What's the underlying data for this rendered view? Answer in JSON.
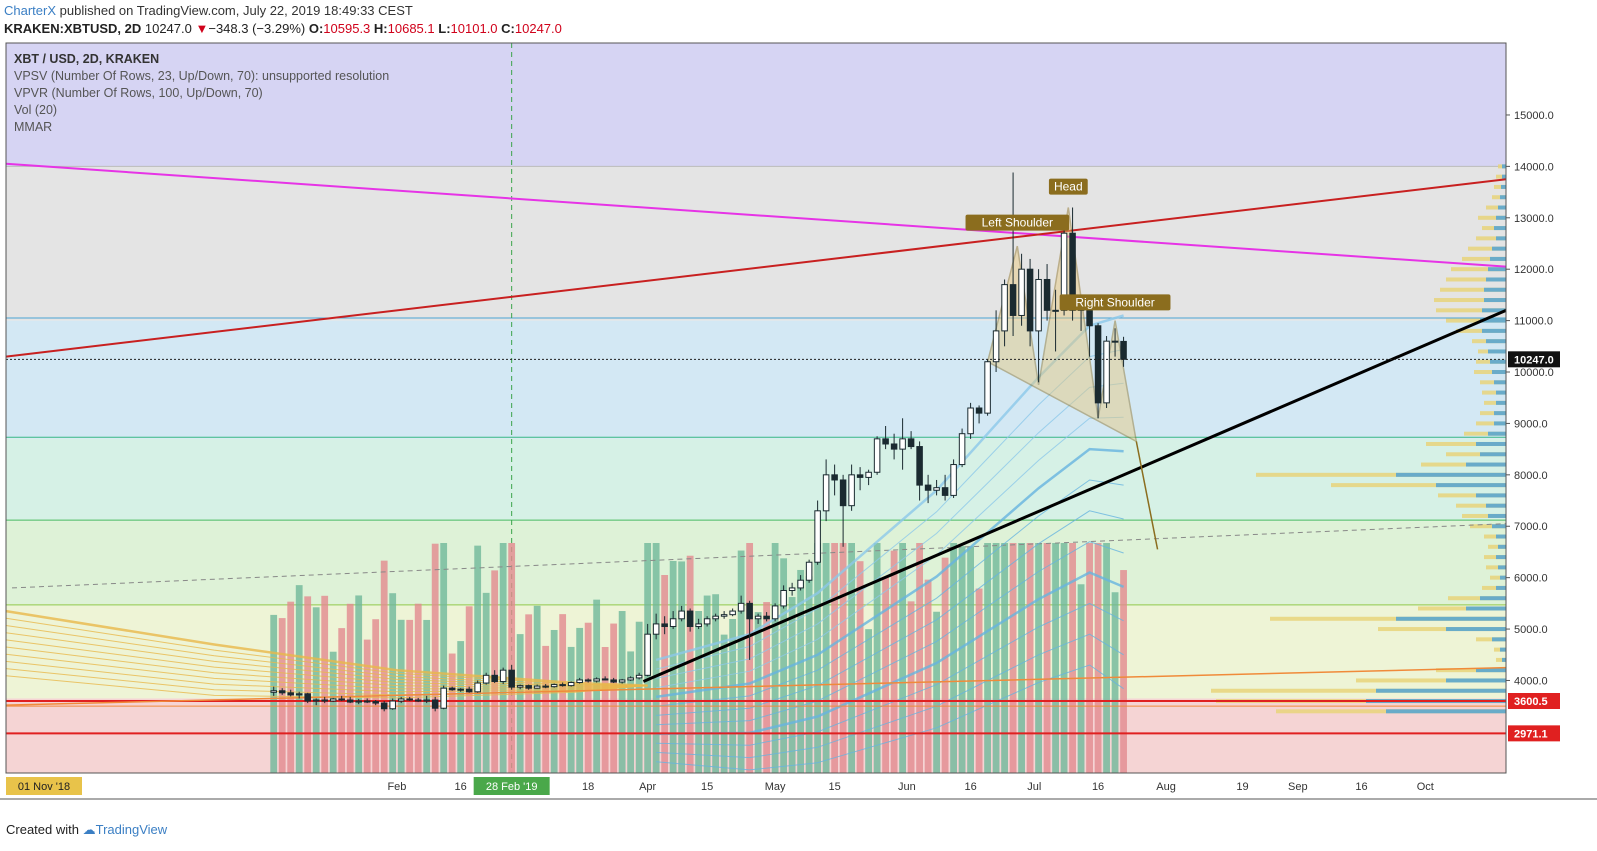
{
  "header": {
    "author": "CharterX",
    "published_text": "published on TradingView.com, July 22, 2019 18:49:33 CEST",
    "symbol": "KRAKEN:XBTUSD, 2D",
    "last": "10247.0",
    "change_arrow": "▼",
    "change": "−348.3 (−3.29%)",
    "open_label": "O:",
    "open": "10595.3",
    "high_label": "H:",
    "high": "10685.1",
    "low_label": "L:",
    "low": "10101.0",
    "close_label": "C:",
    "close": "10247.0"
  },
  "legend": {
    "title": "XBT / USD, 2D, KRAKEN",
    "vpsv": "VPSV (Number Of Rows, 23, Up/Down, 70): unsupported resolution",
    "vpvr": "VPVR (Number Of Rows, 100, Up/Down, 70)",
    "vol": "Vol (20)",
    "mmar": "MMAR"
  },
  "footer": {
    "created_with": "Created with",
    "tradingview": "TradingView"
  },
  "colors": {
    "up": "#ffffff",
    "down": "#1a2a30",
    "vol_up": "#6fb89a",
    "vol_down": "#e2898e",
    "pattern": "#8b6d1e",
    "support_red": "#e02020",
    "trend_black": "#000000",
    "magenta": "#e633e6",
    "darkred": "#c82020"
  },
  "chart_data": {
    "type": "candlestick",
    "ylim": [
      2200,
      16400
    ],
    "y_ticks": [
      4000,
      5000,
      6000,
      7000,
      8000,
      9000,
      10000,
      11000,
      12000,
      13000,
      14000,
      15000
    ],
    "y_tick_labels": [
      "4000.0",
      "5000.0",
      "6000.0",
      "7000.0",
      "8000.0",
      "9000.0",
      "10000.0",
      "11000.0",
      "12000.0",
      "13000.0",
      "14000.0",
      "15000.0"
    ],
    "x_tick_labels": [
      {
        "date": "2018-11-01",
        "label": "01 Nov '18",
        "badge": true
      },
      {
        "date": "2019-02-01",
        "label": "Feb"
      },
      {
        "date": "2019-02-16",
        "label": "16"
      },
      {
        "date": "2019-02-28",
        "label": "28 Feb '19",
        "badge": true
      },
      {
        "date": "2019-03-18",
        "label": "18"
      },
      {
        "date": "2019-04-01",
        "label": "Apr"
      },
      {
        "date": "2019-04-15",
        "label": "15"
      },
      {
        "date": "2019-05-01",
        "label": "May"
      },
      {
        "date": "2019-05-15",
        "label": "15"
      },
      {
        "date": "2019-06-01",
        "label": "Jun"
      },
      {
        "date": "2019-06-16",
        "label": "16"
      },
      {
        "date": "2019-07-01",
        "label": "Jul"
      },
      {
        "date": "2019-07-16",
        "label": "16"
      },
      {
        "date": "2019-08-01",
        "label": "Aug"
      },
      {
        "date": "2019-08-19",
        "label": "19"
      },
      {
        "date": "2019-09-01",
        "label": "Sep"
      },
      {
        "date": "2019-09-16",
        "label": "16"
      },
      {
        "date": "2019-10-01",
        "label": "Oct"
      }
    ],
    "candles": [
      {
        "d": "2019-01-03",
        "o": 3770,
        "h": 3880,
        "l": 3700,
        "c": 3800
      },
      {
        "d": "2019-01-05",
        "o": 3800,
        "h": 3850,
        "l": 3720,
        "c": 3760
      },
      {
        "d": "2019-01-07",
        "o": 3760,
        "h": 3820,
        "l": 3690,
        "c": 3720
      },
      {
        "d": "2019-01-09",
        "o": 3720,
        "h": 3780,
        "l": 3650,
        "c": 3740
      },
      {
        "d": "2019-01-11",
        "o": 3740,
        "h": 3760,
        "l": 3560,
        "c": 3600
      },
      {
        "d": "2019-01-13",
        "o": 3600,
        "h": 3650,
        "l": 3520,
        "c": 3620
      },
      {
        "d": "2019-01-15",
        "o": 3620,
        "h": 3680,
        "l": 3560,
        "c": 3600
      },
      {
        "d": "2019-01-17",
        "o": 3600,
        "h": 3660,
        "l": 3580,
        "c": 3640
      },
      {
        "d": "2019-01-19",
        "o": 3640,
        "h": 3700,
        "l": 3600,
        "c": 3620
      },
      {
        "d": "2019-01-21",
        "o": 3620,
        "h": 3680,
        "l": 3560,
        "c": 3580
      },
      {
        "d": "2019-01-23",
        "o": 3580,
        "h": 3640,
        "l": 3540,
        "c": 3600
      },
      {
        "d": "2019-01-25",
        "o": 3600,
        "h": 3650,
        "l": 3560,
        "c": 3590
      },
      {
        "d": "2019-01-27",
        "o": 3590,
        "h": 3620,
        "l": 3520,
        "c": 3560
      },
      {
        "d": "2019-01-29",
        "o": 3560,
        "h": 3600,
        "l": 3400,
        "c": 3450
      },
      {
        "d": "2019-01-31",
        "o": 3450,
        "h": 3650,
        "l": 3430,
        "c": 3600
      },
      {
        "d": "2019-02-02",
        "o": 3600,
        "h": 3680,
        "l": 3560,
        "c": 3640
      },
      {
        "d": "2019-02-04",
        "o": 3640,
        "h": 3680,
        "l": 3600,
        "c": 3620
      },
      {
        "d": "2019-02-06",
        "o": 3620,
        "h": 3660,
        "l": 3580,
        "c": 3600
      },
      {
        "d": "2019-02-08",
        "o": 3600,
        "h": 3700,
        "l": 3560,
        "c": 3620
      },
      {
        "d": "2019-02-10",
        "o": 3620,
        "h": 3680,
        "l": 3400,
        "c": 3460
      },
      {
        "d": "2019-02-12",
        "o": 3460,
        "h": 3900,
        "l": 3440,
        "c": 3850
      },
      {
        "d": "2019-02-14",
        "o": 3850,
        "h": 3880,
        "l": 3800,
        "c": 3820
      },
      {
        "d": "2019-02-16",
        "o": 3820,
        "h": 3850,
        "l": 3780,
        "c": 3830
      },
      {
        "d": "2019-02-18",
        "o": 3830,
        "h": 3880,
        "l": 3760,
        "c": 3780
      },
      {
        "d": "2019-02-20",
        "o": 3780,
        "h": 4000,
        "l": 3760,
        "c": 3950
      },
      {
        "d": "2019-02-22",
        "o": 3950,
        "h": 4150,
        "l": 3920,
        "c": 4100
      },
      {
        "d": "2019-02-24",
        "o": 4100,
        "h": 4200,
        "l": 3950,
        "c": 3980
      },
      {
        "d": "2019-02-26",
        "o": 3980,
        "h": 4250,
        "l": 3930,
        "c": 4200
      },
      {
        "d": "2019-02-28",
        "o": 4200,
        "h": 4300,
        "l": 3820,
        "c": 3870
      },
      {
        "d": "2019-03-02",
        "o": 3870,
        "h": 3920,
        "l": 3830,
        "c": 3900
      },
      {
        "d": "2019-03-04",
        "o": 3900,
        "h": 3920,
        "l": 3820,
        "c": 3850
      },
      {
        "d": "2019-03-06",
        "o": 3850,
        "h": 3920,
        "l": 3840,
        "c": 3890
      },
      {
        "d": "2019-03-08",
        "o": 3890,
        "h": 3930,
        "l": 3850,
        "c": 3880
      },
      {
        "d": "2019-03-10",
        "o": 3880,
        "h": 3940,
        "l": 3860,
        "c": 3920
      },
      {
        "d": "2019-03-12",
        "o": 3920,
        "h": 3960,
        "l": 3880,
        "c": 3900
      },
      {
        "d": "2019-03-14",
        "o": 3900,
        "h": 3980,
        "l": 3880,
        "c": 3960
      },
      {
        "d": "2019-03-16",
        "o": 3960,
        "h": 4050,
        "l": 3940,
        "c": 4010
      },
      {
        "d": "2019-03-18",
        "o": 4010,
        "h": 4040,
        "l": 3960,
        "c": 3990
      },
      {
        "d": "2019-03-20",
        "o": 3990,
        "h": 4060,
        "l": 3960,
        "c": 4030
      },
      {
        "d": "2019-03-22",
        "o": 4030,
        "h": 4080,
        "l": 4000,
        "c": 4010
      },
      {
        "d": "2019-03-24",
        "o": 4010,
        "h": 4050,
        "l": 3950,
        "c": 3970
      },
      {
        "d": "2019-03-26",
        "o": 3970,
        "h": 4030,
        "l": 3940,
        "c": 4010
      },
      {
        "d": "2019-03-28",
        "o": 4010,
        "h": 4080,
        "l": 3990,
        "c": 4050
      },
      {
        "d": "2019-03-30",
        "o": 4050,
        "h": 4150,
        "l": 4020,
        "c": 4100
      },
      {
        "d": "2019-04-01",
        "o": 4100,
        "h": 5100,
        "l": 4080,
        "c": 4900
      },
      {
        "d": "2019-04-03",
        "o": 4900,
        "h": 5300,
        "l": 4800,
        "c": 5100
      },
      {
        "d": "2019-04-05",
        "o": 5100,
        "h": 5250,
        "l": 4900,
        "c": 5050
      },
      {
        "d": "2019-04-07",
        "o": 5050,
        "h": 5350,
        "l": 5000,
        "c": 5200
      },
      {
        "d": "2019-04-09",
        "o": 5200,
        "h": 5450,
        "l": 5150,
        "c": 5350
      },
      {
        "d": "2019-04-11",
        "o": 5350,
        "h": 5400,
        "l": 4950,
        "c": 5050
      },
      {
        "d": "2019-04-13",
        "o": 5050,
        "h": 5200,
        "l": 5000,
        "c": 5100
      },
      {
        "d": "2019-04-15",
        "o": 5100,
        "h": 5250,
        "l": 5050,
        "c": 5200
      },
      {
        "d": "2019-04-17",
        "o": 5200,
        "h": 5300,
        "l": 5150,
        "c": 5250
      },
      {
        "d": "2019-04-19",
        "o": 5250,
        "h": 5350,
        "l": 5200,
        "c": 5280
      },
      {
        "d": "2019-04-21",
        "o": 5280,
        "h": 5400,
        "l": 5250,
        "c": 5350
      },
      {
        "d": "2019-04-23",
        "o": 5350,
        "h": 5650,
        "l": 5300,
        "c": 5500
      },
      {
        "d": "2019-04-25",
        "o": 5500,
        "h": 5550,
        "l": 4400,
        "c": 5200
      },
      {
        "d": "2019-04-27",
        "o": 5200,
        "h": 5300,
        "l": 5100,
        "c": 5250
      },
      {
        "d": "2019-04-29",
        "o": 5250,
        "h": 5330,
        "l": 5150,
        "c": 5200
      },
      {
        "d": "2019-05-01",
        "o": 5200,
        "h": 5500,
        "l": 5150,
        "c": 5450
      },
      {
        "d": "2019-05-03",
        "o": 5450,
        "h": 5850,
        "l": 5400,
        "c": 5750
      },
      {
        "d": "2019-05-05",
        "o": 5750,
        "h": 5900,
        "l": 5650,
        "c": 5800
      },
      {
        "d": "2019-05-07",
        "o": 5800,
        "h": 6050,
        "l": 5750,
        "c": 5950
      },
      {
        "d": "2019-05-09",
        "o": 5950,
        "h": 6350,
        "l": 5900,
        "c": 6300
      },
      {
        "d": "2019-05-11",
        "o": 6300,
        "h": 7500,
        "l": 6250,
        "c": 7300
      },
      {
        "d": "2019-05-13",
        "o": 7300,
        "h": 8300,
        "l": 7100,
        "c": 8000
      },
      {
        "d": "2019-05-15",
        "o": 8000,
        "h": 8200,
        "l": 7600,
        "c": 7900
      },
      {
        "d": "2019-05-17",
        "o": 7900,
        "h": 8000,
        "l": 6600,
        "c": 7400
      },
      {
        "d": "2019-05-19",
        "o": 7400,
        "h": 8200,
        "l": 7300,
        "c": 8000
      },
      {
        "d": "2019-05-21",
        "o": 8000,
        "h": 8150,
        "l": 7700,
        "c": 7950
      },
      {
        "d": "2019-05-23",
        "o": 7950,
        "h": 8100,
        "l": 7800,
        "c": 8050
      },
      {
        "d": "2019-05-25",
        "o": 8050,
        "h": 8750,
        "l": 8000,
        "c": 8700
      },
      {
        "d": "2019-05-27",
        "o": 8700,
        "h": 8950,
        "l": 8500,
        "c": 8600
      },
      {
        "d": "2019-05-29",
        "o": 8600,
        "h": 8800,
        "l": 8300,
        "c": 8500
      },
      {
        "d": "2019-05-31",
        "o": 8500,
        "h": 9100,
        "l": 8100,
        "c": 8700
      },
      {
        "d": "2019-06-02",
        "o": 8700,
        "h": 8850,
        "l": 8500,
        "c": 8550
      },
      {
        "d": "2019-06-04",
        "o": 8550,
        "h": 8650,
        "l": 7500,
        "c": 7800
      },
      {
        "d": "2019-06-06",
        "o": 7800,
        "h": 8000,
        "l": 7450,
        "c": 7700
      },
      {
        "d": "2019-06-08",
        "o": 7700,
        "h": 7900,
        "l": 7600,
        "c": 7750
      },
      {
        "d": "2019-06-10",
        "o": 7750,
        "h": 8000,
        "l": 7500,
        "c": 7600
      },
      {
        "d": "2019-06-12",
        "o": 7600,
        "h": 8300,
        "l": 7550,
        "c": 8200
      },
      {
        "d": "2019-06-14",
        "o": 8200,
        "h": 8900,
        "l": 8150,
        "c": 8800
      },
      {
        "d": "2019-06-16",
        "o": 8800,
        "h": 9400,
        "l": 8700,
        "c": 9300
      },
      {
        "d": "2019-06-18",
        "o": 9300,
        "h": 9350,
        "l": 9000,
        "c": 9200
      },
      {
        "d": "2019-06-20",
        "o": 9200,
        "h": 10250,
        "l": 9150,
        "c": 10200
      },
      {
        "d": "2019-06-22",
        "o": 10200,
        "h": 11200,
        "l": 10000,
        "c": 10800
      },
      {
        "d": "2019-06-24",
        "o": 10800,
        "h": 11800,
        "l": 10500,
        "c": 11700
      },
      {
        "d": "2019-06-26",
        "o": 11700,
        "h": 13880,
        "l": 10700,
        "c": 11100
      },
      {
        "d": "2019-06-28",
        "o": 11100,
        "h": 12300,
        "l": 10900,
        "c": 12000
      },
      {
        "d": "2019-06-30",
        "o": 12000,
        "h": 12200,
        "l": 10500,
        "c": 10800
      },
      {
        "d": "2019-07-02",
        "o": 10800,
        "h": 12000,
        "l": 9800,
        "c": 11800
      },
      {
        "d": "2019-07-04",
        "o": 11800,
        "h": 12100,
        "l": 11000,
        "c": 11200
      },
      {
        "d": "2019-07-06",
        "o": 11200,
        "h": 11600,
        "l": 10400,
        "c": 11200
      },
      {
        "d": "2019-07-08",
        "o": 11200,
        "h": 12900,
        "l": 11100,
        "c": 12700
      },
      {
        "d": "2019-07-10",
        "o": 12700,
        "h": 13200,
        "l": 11000,
        "c": 11200
      },
      {
        "d": "2019-07-12",
        "o": 11200,
        "h": 11500,
        "l": 10800,
        "c": 11300
      },
      {
        "d": "2019-07-14",
        "o": 11300,
        "h": 11400,
        "l": 10300,
        "c": 10900
      },
      {
        "d": "2019-07-16",
        "o": 10900,
        "h": 10950,
        "l": 9100,
        "c": 9400
      },
      {
        "d": "2019-07-18",
        "o": 9400,
        "h": 10700,
        "l": 9300,
        "c": 10600
      },
      {
        "d": "2019-07-20",
        "o": 10600,
        "h": 10850,
        "l": 10300,
        "c": 10600
      },
      {
        "d": "2019-07-22",
        "o": 10595,
        "h": 10685,
        "l": 10101,
        "c": 10247
      }
    ],
    "horizontal_levels": [
      {
        "price": 3600.5,
        "label": "3600.5"
      },
      {
        "price": 2971.1,
        "label": "2971.1"
      }
    ],
    "current_price_label": "10247.0",
    "annotations": [
      "Left Shoulder",
      "Head",
      "Right Shoulder"
    ]
  }
}
